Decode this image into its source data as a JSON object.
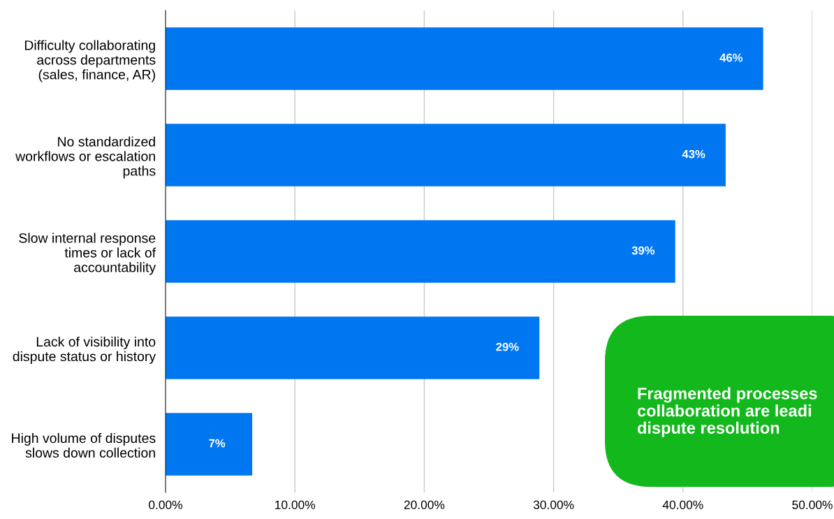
{
  "chart_data": {
    "type": "bar",
    "orientation": "horizontal",
    "categories": [
      "Difficulty collaborating\nacross departments\n(sales, finance, AR)",
      "No standardized\nworkflows or escalation\npaths",
      "Slow internal response\ntimes or lack of\naccountability",
      "Lack of visibility into\ndispute status or history",
      "High volume of disputes\nslows down collection"
    ],
    "values": [
      46.2,
      43.3,
      39.4,
      28.9,
      6.7
    ],
    "value_labels": [
      "46%",
      "43%",
      "39%",
      "29%",
      "7%"
    ],
    "color": "#0077f0",
    "xlim": [
      0,
      50
    ],
    "xticks": [
      {
        "value": 0,
        "label": "0.00%"
      },
      {
        "value": 10,
        "label": "10.00%"
      },
      {
        "value": 20,
        "label": "20.00%"
      },
      {
        "value": 30,
        "label": "30.00%"
      },
      {
        "value": 40,
        "label": "40.00%"
      },
      {
        "value": 50,
        "label": "50.00%"
      }
    ],
    "grid": "x",
    "annotations": [
      "Fragmented processes\ncollaboration are leadi\ndispute resolution"
    ]
  }
}
